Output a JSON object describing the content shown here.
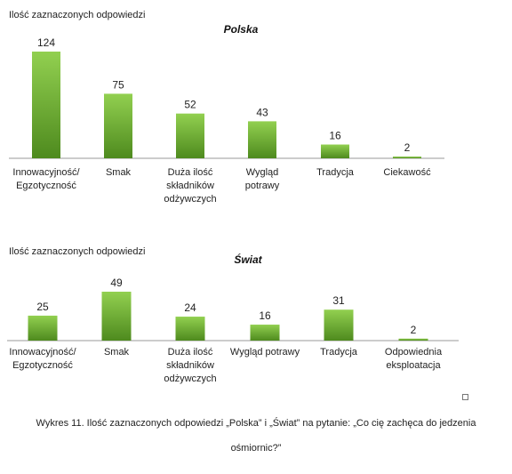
{
  "charts": [
    {
      "ylabel": "Ilość zaznaczonych odpowiedzi",
      "title": "Polska",
      "categories": [
        [
          "Innowacyjność/",
          "Egzotyczność"
        ],
        [
          "Smak"
        ],
        [
          "Duża ilość",
          "składników",
          "odżywczych"
        ],
        [
          "Wygląd",
          "potrawy"
        ],
        [
          "Tradycja"
        ],
        [
          "Ciekawość"
        ]
      ],
      "values": [
        124,
        75,
        52,
        43,
        16,
        2
      ]
    },
    {
      "ylabel": "Ilość zaznaczonych odpowiedzi",
      "title": "Świat",
      "categories": [
        [
          "Innowacyjność/",
          "Egzotyczność"
        ],
        [
          "Smak"
        ],
        [
          "Duża ilość",
          "składników",
          "odżywczych"
        ],
        [
          "Wygląd potrawy"
        ],
        [
          "Tradycja"
        ],
        [
          "Odpowiednia",
          "eksploatacja"
        ]
      ],
      "values": [
        25,
        49,
        24,
        16,
        31,
        2
      ]
    }
  ],
  "chart_data": [
    {
      "type": "bar",
      "title": "Polska",
      "ylabel": "Ilość zaznaczonych odpowiedzi",
      "categories": [
        "Innowacyjność/ Egzotyczność",
        "Smak",
        "Duża ilość składników odżywczych",
        "Wygląd potrawy",
        "Tradycja",
        "Ciekawość"
      ],
      "values": [
        124,
        75,
        52,
        43,
        16,
        2
      ],
      "grid": false,
      "colors": {
        "bar_top": "#92d050",
        "bar_bottom": "#4e8a1e"
      }
    },
    {
      "type": "bar",
      "title": "Świat",
      "ylabel": "Ilość zaznaczonych odpowiedzi",
      "categories": [
        "Innowacyjność/ Egzotyczność",
        "Smak",
        "Duża ilość składników odżywczych",
        "Wygląd potrawy",
        "Tradycja",
        "Odpowiednia eksploatacja"
      ],
      "values": [
        25,
        49,
        24,
        16,
        31,
        2
      ],
      "grid": false,
      "colors": {
        "bar_top": "#92d050",
        "bar_bottom": "#4e8a1e"
      }
    }
  ],
  "caption": {
    "line1": "Wykres 11. Ilość zaznaczonych odpowiedzi „Polska” i „Świat” na pytanie: „Co cię zachęca do jedzenia",
    "line2": "ośmiornic?”"
  }
}
